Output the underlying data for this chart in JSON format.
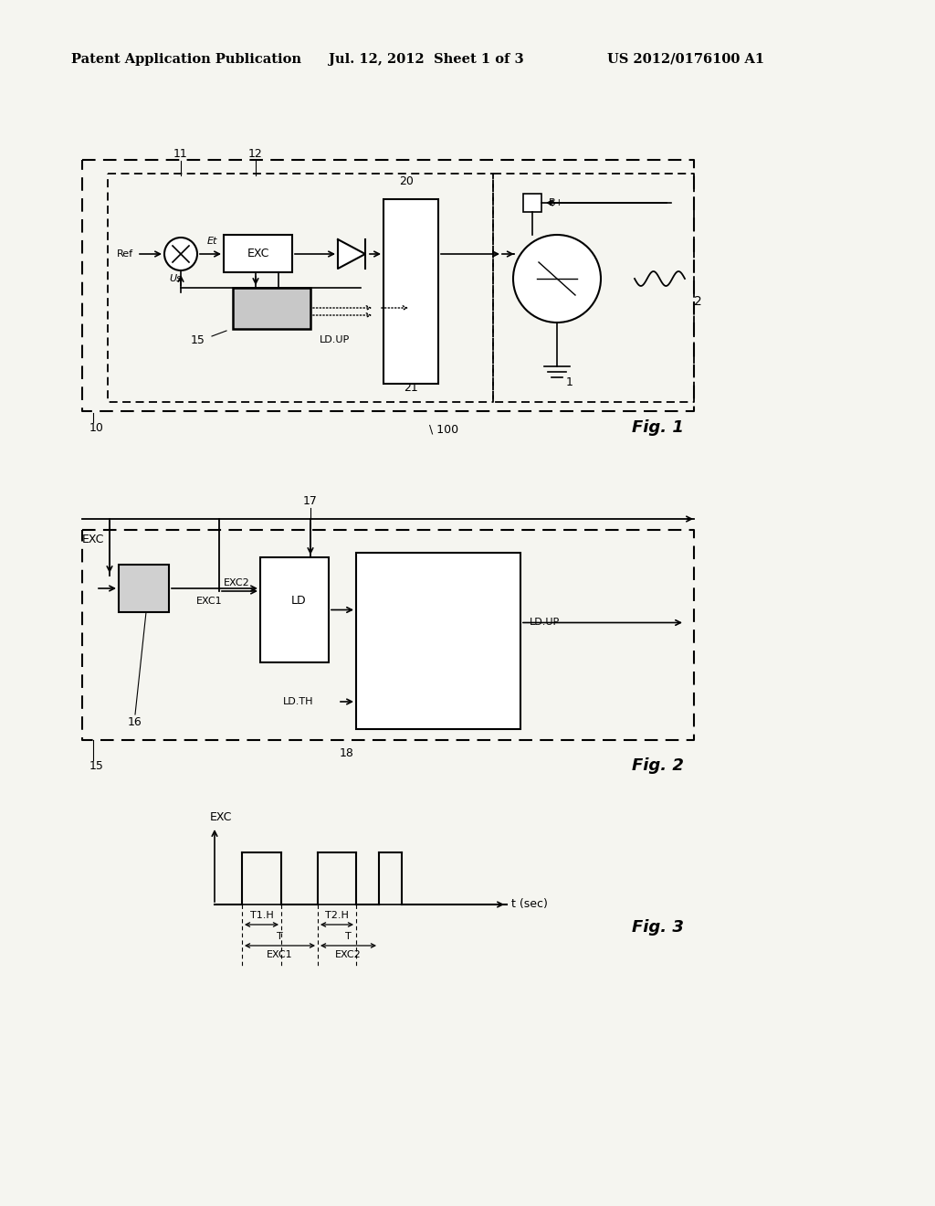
{
  "header_left": "Patent Application Publication",
  "header_mid": "Jul. 12, 2012  Sheet 1 of 3",
  "header_right": "US 2012/0176100 A1",
  "bg": "#f5f5f0"
}
